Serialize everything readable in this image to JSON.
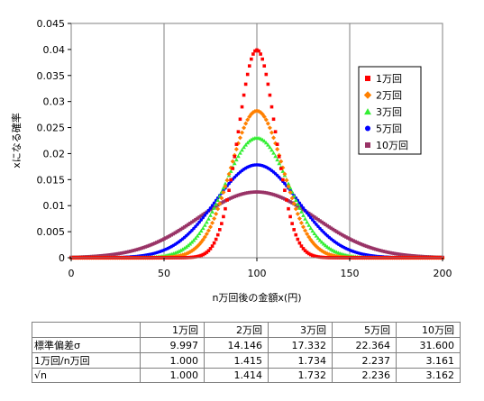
{
  "chart_data": {
    "type": "scatter",
    "xlabel": "n万回後の金額x(円)",
    "ylabel": "xになる確率",
    "xlim": [
      0,
      200
    ],
    "ylim": [
      0,
      0.045
    ],
    "x_ticks": [
      "0",
      "50",
      "100",
      "150",
      "200"
    ],
    "y_ticks": [
      "0",
      "0.005",
      "0.01",
      "0.015",
      "0.02",
      "0.025",
      "0.03",
      "0.035",
      "0.04",
      "0.045"
    ],
    "grid": "vertical",
    "legend_position": "right",
    "series": [
      {
        "name": "1万回",
        "color": "#ff0000",
        "marker": "square",
        "mean": 100,
        "sigma": 9.997
      },
      {
        "name": "2万回",
        "color": "#ff8000",
        "marker": "diamond",
        "mean": 100,
        "sigma": 14.146
      },
      {
        "name": "3万回",
        "color": "#33ee33",
        "marker": "triangle",
        "mean": 100,
        "sigma": 17.332
      },
      {
        "name": "5万回",
        "color": "#0000ff",
        "marker": "circle",
        "mean": 100,
        "sigma": 22.364
      },
      {
        "name": "10万回",
        "color": "#993366",
        "marker": "square",
        "mean": 100,
        "sigma": 31.6
      }
    ]
  },
  "table": {
    "headers": [
      "",
      "1万回",
      "2万回",
      "3万回",
      "5万回",
      "10万回"
    ],
    "rows": [
      {
        "label": "標準偏差σ",
        "values": [
          "9.997",
          "14.146",
          "17.332",
          "22.364",
          "31.600"
        ]
      },
      {
        "label": "1万回/n万回",
        "values": [
          "1.000",
          "1.415",
          "1.734",
          "2.237",
          "3.161"
        ]
      },
      {
        "label": "√n",
        "values": [
          "1.000",
          "1.414",
          "1.732",
          "2.236",
          "3.162"
        ]
      }
    ]
  }
}
